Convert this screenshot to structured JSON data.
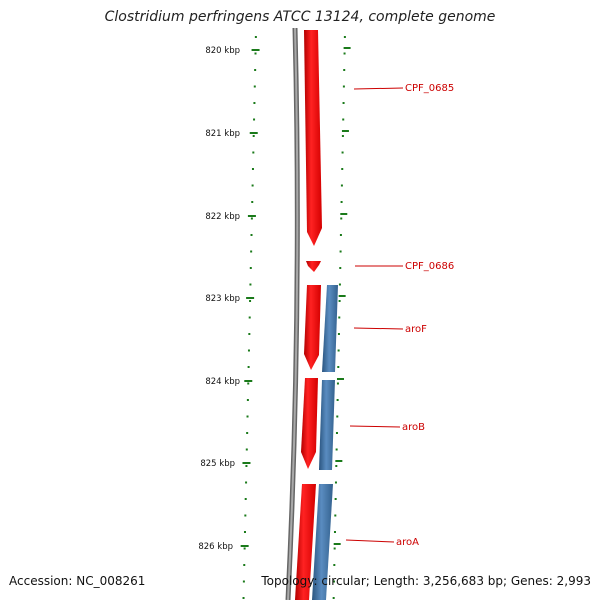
{
  "title": "Clostridium perfringens ATCC 13124, complete genome",
  "accession": "Accession: NC_008261",
  "summary": "Topology: circular; Length: 3,256,683 bp; Genes: 2,993",
  "colors": {
    "forward_strand": "#ee0000",
    "reverse_strand": "#3a6d9c",
    "backbone": "#888888",
    "ticks": "#1a7a1a",
    "gene_label": "#cc0000"
  },
  "positions": [
    "820 kbp",
    "821 kbp",
    "822 kbp",
    "823 kbp",
    "824 kbp",
    "825 kbp",
    "826 kbp"
  ],
  "genes": [
    {
      "name": "CPF_0685",
      "strand": "forward"
    },
    {
      "name": "CPF_0686",
      "strand": "forward"
    },
    {
      "name": "aroF",
      "strand": "reverse"
    },
    {
      "name": "aroB",
      "strand": "reverse"
    },
    {
      "name": "aroA",
      "strand": "reverse"
    }
  ]
}
